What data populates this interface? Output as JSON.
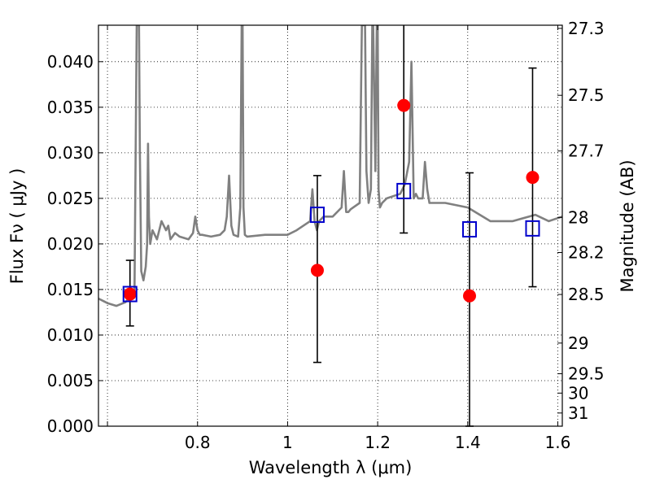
{
  "chart_data": {
    "type": "scatter",
    "title": "",
    "xlabel": "Wavelength  λ (μm)",
    "ylabel": "Flux  Fν  ( μJy )",
    "y2label": "Magnitude (AB)",
    "xlim": [
      0.58,
      1.61
    ],
    "ylim": [
      0.0,
      0.044
    ],
    "grid": true,
    "x_ticks": [
      {
        "value": 0.6,
        "label": ""
      },
      {
        "value": 0.8,
        "label": "0.8"
      },
      {
        "value": 1.0,
        "label": "1"
      },
      {
        "value": 1.2,
        "label": "1.2"
      },
      {
        "value": 1.4,
        "label": "1.4"
      },
      {
        "value": 1.6,
        "label": "1.6"
      }
    ],
    "y_ticks": [
      {
        "value": 0.0,
        "label": "0.000"
      },
      {
        "value": 0.005,
        "label": "0.005"
      },
      {
        "value": 0.01,
        "label": "0.010"
      },
      {
        "value": 0.015,
        "label": "0.015"
      },
      {
        "value": 0.02,
        "label": "0.020"
      },
      {
        "value": 0.025,
        "label": "0.025"
      },
      {
        "value": 0.03,
        "label": "0.030"
      },
      {
        "value": 0.035,
        "label": "0.035"
      },
      {
        "value": 0.04,
        "label": "0.040"
      }
    ],
    "y2_ticks": [
      {
        "value": 27.3,
        "label": "27.3"
      },
      {
        "value": 27.5,
        "label": "27.5"
      },
      {
        "value": 27.7,
        "label": "27.7"
      },
      {
        "value": 28.0,
        "label": "28"
      },
      {
        "value": 28.2,
        "label": "28.2"
      },
      {
        "value": 28.5,
        "label": "28.5"
      },
      {
        "value": 29.0,
        "label": "29"
      },
      {
        "value": 29.5,
        "label": "29.5"
      },
      {
        "value": 30.0,
        "label": "30"
      },
      {
        "value": 31.0,
        "label": "31"
      }
    ],
    "series": [
      {
        "type": "line",
        "color": "#808080",
        "x": [
          0.58,
          0.6,
          0.62,
          0.64,
          0.65,
          0.66,
          0.665,
          0.667,
          0.67,
          0.672,
          0.675,
          0.68,
          0.685,
          0.688,
          0.69,
          0.692,
          0.695,
          0.7,
          0.71,
          0.72,
          0.73,
          0.735,
          0.74,
          0.75,
          0.76,
          0.78,
          0.79,
          0.795,
          0.8,
          0.805,
          0.81,
          0.83,
          0.85,
          0.86,
          0.865,
          0.87,
          0.875,
          0.88,
          0.89,
          0.895,
          0.898,
          0.9,
          0.902,
          0.905,
          0.91,
          0.95,
          1.0,
          1.02,
          1.05,
          1.055,
          1.06,
          1.065,
          1.07,
          1.08,
          1.1,
          1.12,
          1.125,
          1.13,
          1.135,
          1.14,
          1.16,
          1.165,
          1.168,
          1.17,
          1.172,
          1.175,
          1.18,
          1.185,
          1.188,
          1.19,
          1.195,
          1.198,
          1.2,
          1.202,
          1.205,
          1.21,
          1.22,
          1.25,
          1.26,
          1.27,
          1.275,
          1.28,
          1.285,
          1.29,
          1.3,
          1.305,
          1.31,
          1.315,
          1.32,
          1.35,
          1.4,
          1.45,
          1.5,
          1.55,
          1.58,
          1.61
        ],
        "y": [
          0.014,
          0.0135,
          0.0132,
          0.0136,
          0.0142,
          0.015,
          0.044,
          0.044,
          0.044,
          0.03,
          0.017,
          0.016,
          0.0175,
          0.02,
          0.031,
          0.023,
          0.02,
          0.0215,
          0.0205,
          0.0225,
          0.0215,
          0.022,
          0.0205,
          0.0212,
          0.0208,
          0.0205,
          0.0212,
          0.023,
          0.0215,
          0.021,
          0.021,
          0.0208,
          0.021,
          0.0215,
          0.023,
          0.0275,
          0.022,
          0.021,
          0.0208,
          0.024,
          0.044,
          0.044,
          0.024,
          0.021,
          0.0208,
          0.021,
          0.021,
          0.0215,
          0.0225,
          0.026,
          0.0225,
          0.0215,
          0.0225,
          0.023,
          0.023,
          0.024,
          0.028,
          0.0235,
          0.0235,
          0.0238,
          0.0245,
          0.044,
          0.044,
          0.044,
          0.044,
          0.028,
          0.0245,
          0.026,
          0.044,
          0.044,
          0.028,
          0.044,
          0.044,
          0.026,
          0.024,
          0.0245,
          0.025,
          0.0255,
          0.0265,
          0.029,
          0.04,
          0.025,
          0.0255,
          0.025,
          0.025,
          0.029,
          0.026,
          0.0245,
          0.0245,
          0.0245,
          0.024,
          0.0225,
          0.0225,
          0.0232,
          0.0225,
          0.023
        ]
      },
      {
        "type": "scatter",
        "marker": "square",
        "color": "#0000cc",
        "x": [
          0.65,
          1.066,
          1.258,
          1.404,
          1.544
        ],
        "y": [
          0.0145,
          0.0232,
          0.0258,
          0.0216,
          0.0217
        ]
      },
      {
        "type": "scatter",
        "marker": "circle",
        "color": "#ff0000",
        "x": [
          0.65,
          1.066,
          1.258,
          1.404,
          1.544
        ],
        "y": [
          0.0145,
          0.0171,
          0.0352,
          0.0143,
          0.0273
        ],
        "err_low": [
          0.0035,
          0.0101,
          0.014,
          0.0143,
          0.012
        ],
        "err_high": [
          0.0037,
          0.0104,
          0.0098,
          0.0135,
          0.012
        ]
      }
    ]
  }
}
